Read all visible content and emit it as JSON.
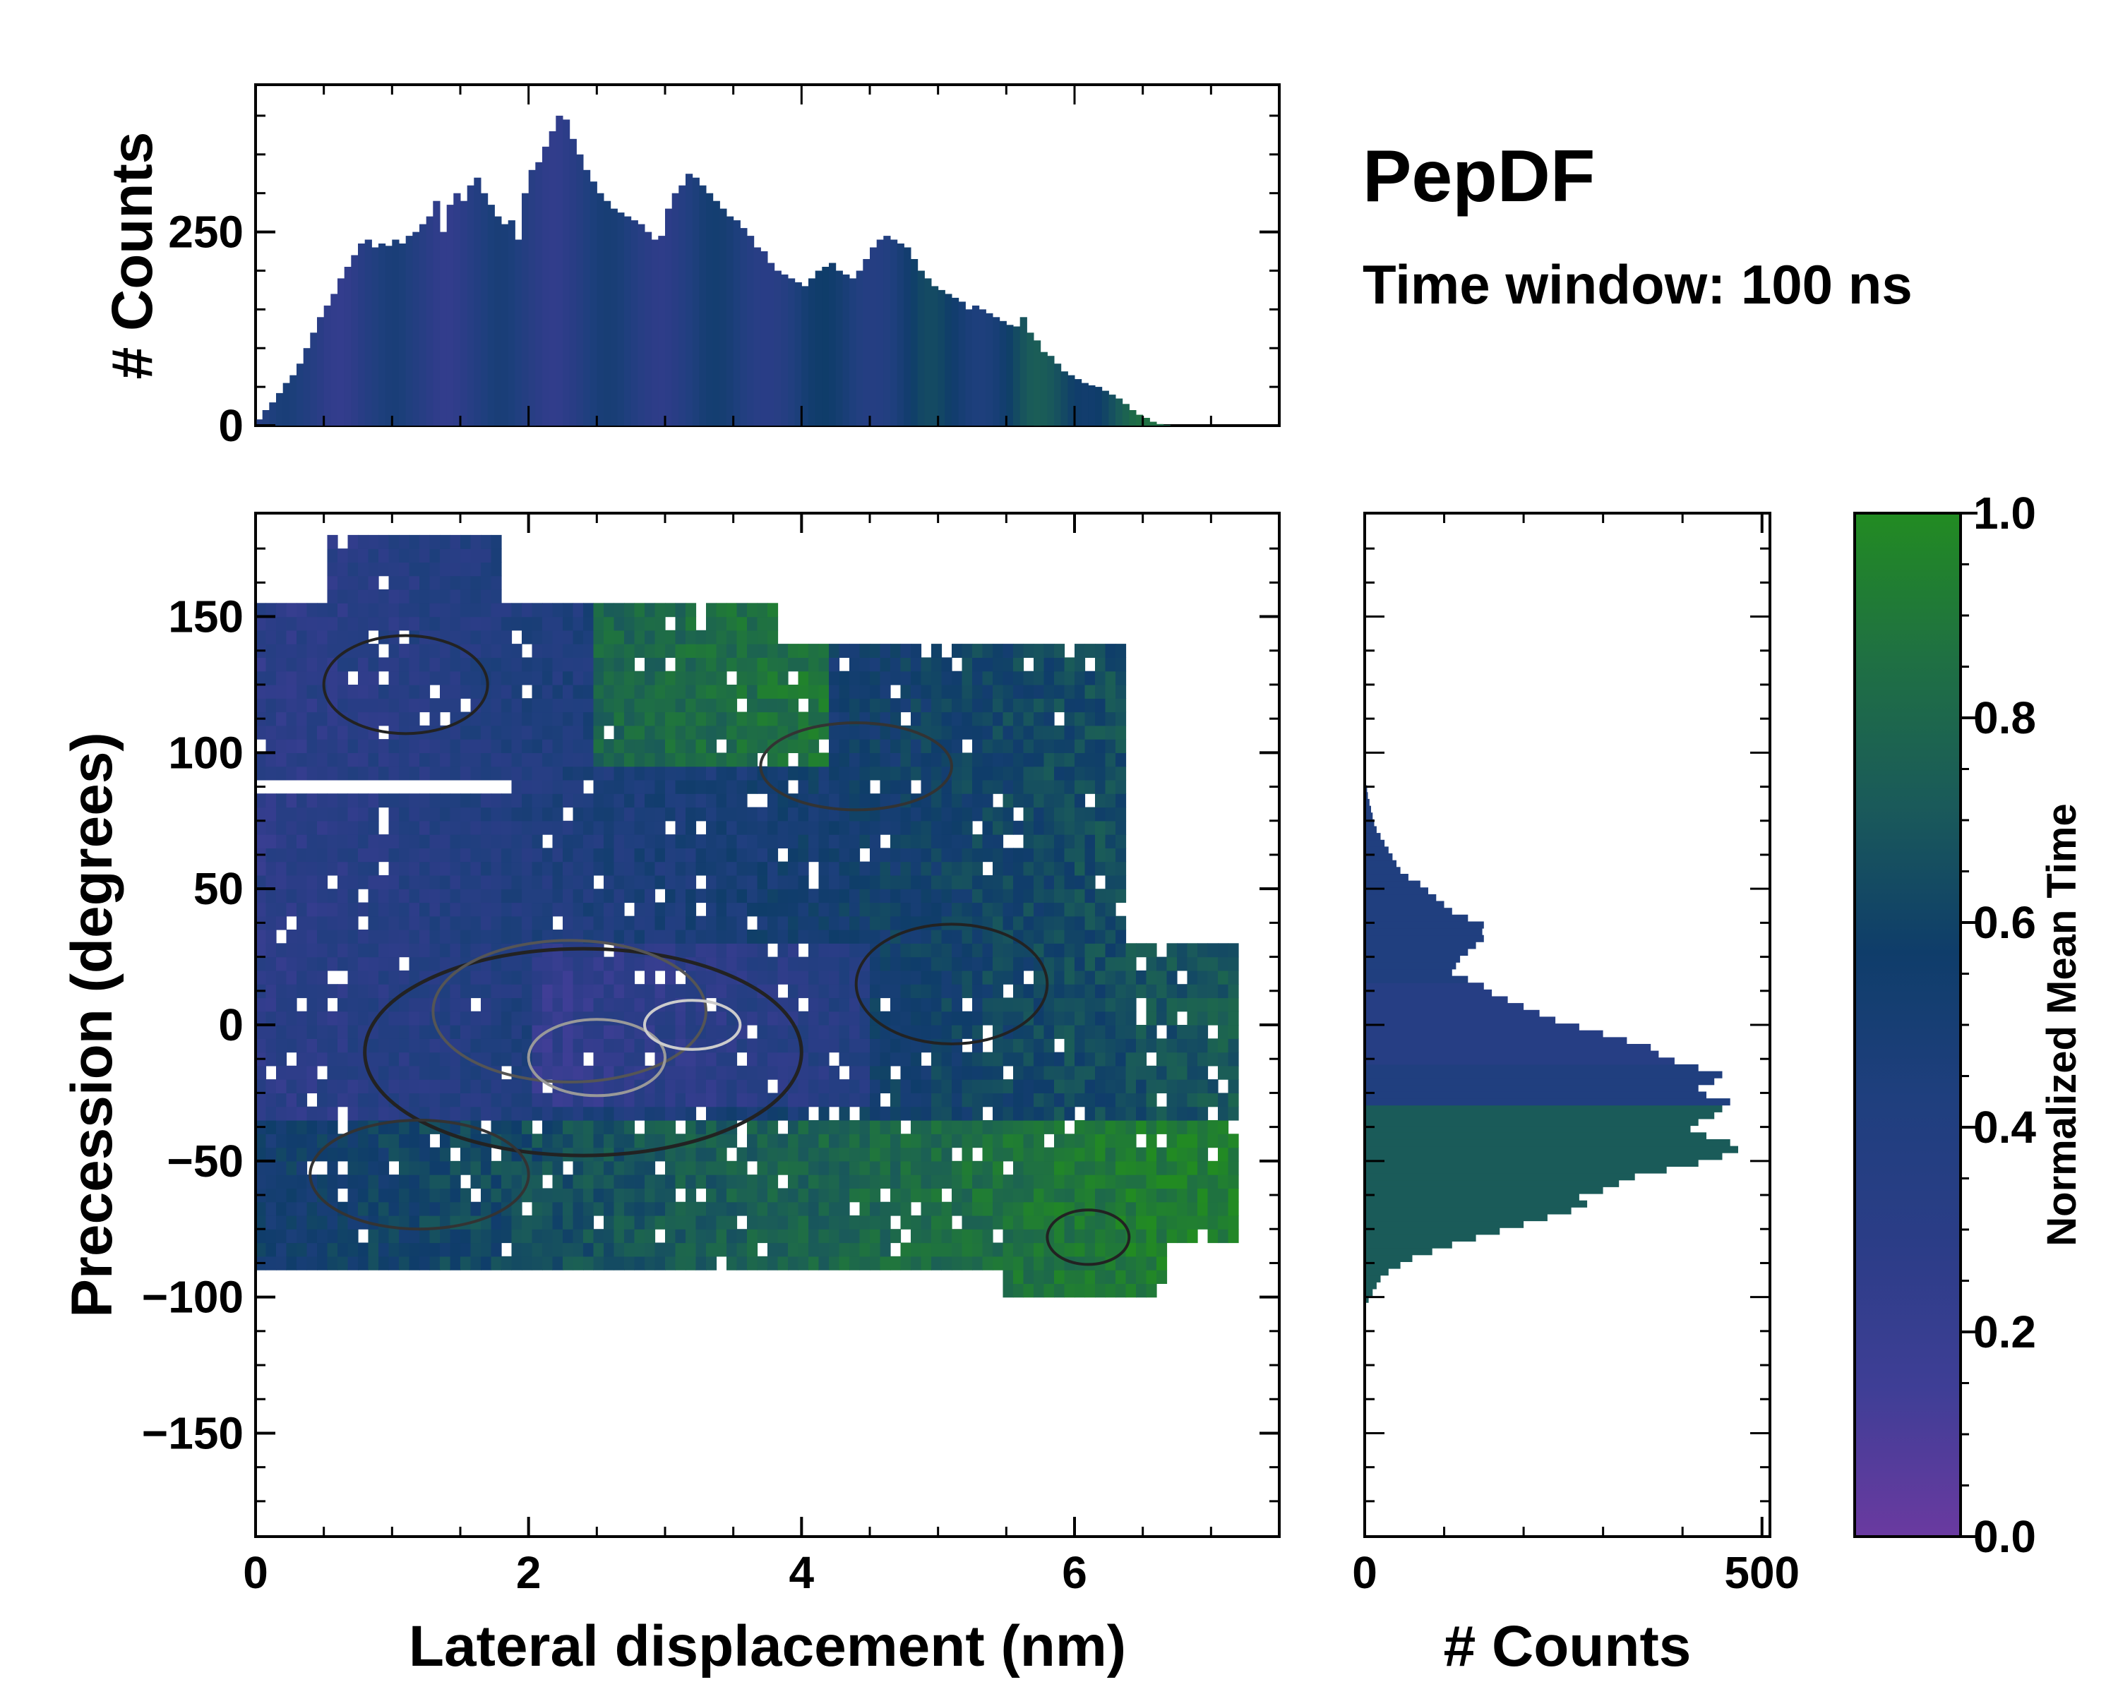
{
  "chart_data": {
    "type": "heatmap",
    "title": "PepDF",
    "subtitle": "Time window: 100 ns",
    "xlabel": "Lateral displacement (nm)",
    "ylabel": "Precession (degrees)",
    "xlim": [
      0,
      7.5
    ],
    "ylim": [
      -188,
      188
    ],
    "x_ticks": [
      0,
      2,
      4,
      6
    ],
    "x_tick_labels": [
      "0",
      "2",
      "4",
      "6"
    ],
    "y_ticks": [
      -150,
      -100,
      -50,
      0,
      50,
      100,
      150
    ],
    "y_tick_labels": [
      "−150",
      "−100",
      "−50",
      "0",
      "50",
      "100",
      "150"
    ],
    "colorbar": {
      "label": "Normalized Mean Time",
      "range": [
        0,
        1
      ],
      "ticks": [
        0.0,
        0.2,
        0.4,
        0.6,
        0.8,
        1.0
      ],
      "tick_labels": [
        "0.0",
        "0.2",
        "0.4",
        "0.6",
        "0.8",
        "1.0"
      ],
      "colors": [
        "#6a3aa0",
        "#3f3e96",
        "#2b3d87",
        "#1f3f7e",
        "#0f3d6a",
        "#1a5a5a",
        "#1f7043",
        "#228b22"
      ]
    },
    "top_histogram": {
      "ylabel": "# Counts",
      "y_ticks": [
        0,
        250
      ],
      "y_tick_labels": [
        "0",
        "250"
      ],
      "ylim": [
        0,
        440
      ],
      "bin_width_nm": 0.05,
      "values": [
        8,
        20,
        30,
        42,
        55,
        65,
        80,
        100,
        120,
        140,
        155,
        170,
        190,
        205,
        220,
        235,
        240,
        230,
        235,
        232,
        240,
        235,
        245,
        250,
        260,
        270,
        290,
        250,
        285,
        300,
        290,
        310,
        320,
        300,
        285,
        270,
        260,
        265,
        240,
        300,
        330,
        340,
        360,
        380,
        400,
        395,
        370,
        350,
        330,
        315,
        300,
        290,
        280,
        275,
        270,
        265,
        260,
        250,
        240,
        245,
        280,
        300,
        310,
        325,
        320,
        310,
        300,
        290,
        280,
        270,
        265,
        255,
        245,
        230,
        225,
        210,
        200,
        195,
        190,
        185,
        180,
        190,
        200,
        205,
        210,
        200,
        195,
        190,
        200,
        215,
        230,
        240,
        245,
        240,
        235,
        230,
        215,
        200,
        190,
        180,
        175,
        170,
        165,
        160,
        150,
        155,
        150,
        145,
        140,
        135,
        130,
        128,
        140,
        120,
        110,
        95,
        90,
        80,
        70,
        65,
        60,
        55,
        52,
        50,
        45,
        40,
        35,
        28,
        20,
        14,
        10,
        5,
        2,
        1,
        0,
        0,
        0
      ]
    },
    "right_histogram": {
      "xlabel": "# Counts",
      "x_ticks": [
        0,
        500
      ],
      "x_tick_labels": [
        "0",
        "500"
      ],
      "xlim": [
        0,
        510
      ],
      "bin_width_deg": 2.5,
      "y_start": -102,
      "values": [
        5,
        10,
        15,
        20,
        30,
        45,
        60,
        85,
        110,
        140,
        170,
        200,
        230,
        260,
        280,
        270,
        300,
        320,
        340,
        380,
        420,
        450,
        470,
        460,
        430,
        410,
        420,
        440,
        450,
        460,
        430,
        420,
        440,
        450,
        420,
        390,
        370,
        360,
        330,
        300,
        270,
        240,
        220,
        200,
        180,
        160,
        150,
        130,
        110,
        115,
        120,
        130,
        140,
        150,
        148,
        150,
        130,
        110,
        100,
        90,
        80,
        70,
        55,
        45,
        40,
        35,
        30,
        25,
        20,
        15,
        12,
        10,
        8,
        6,
        4,
        3
      ]
    }
  }
}
